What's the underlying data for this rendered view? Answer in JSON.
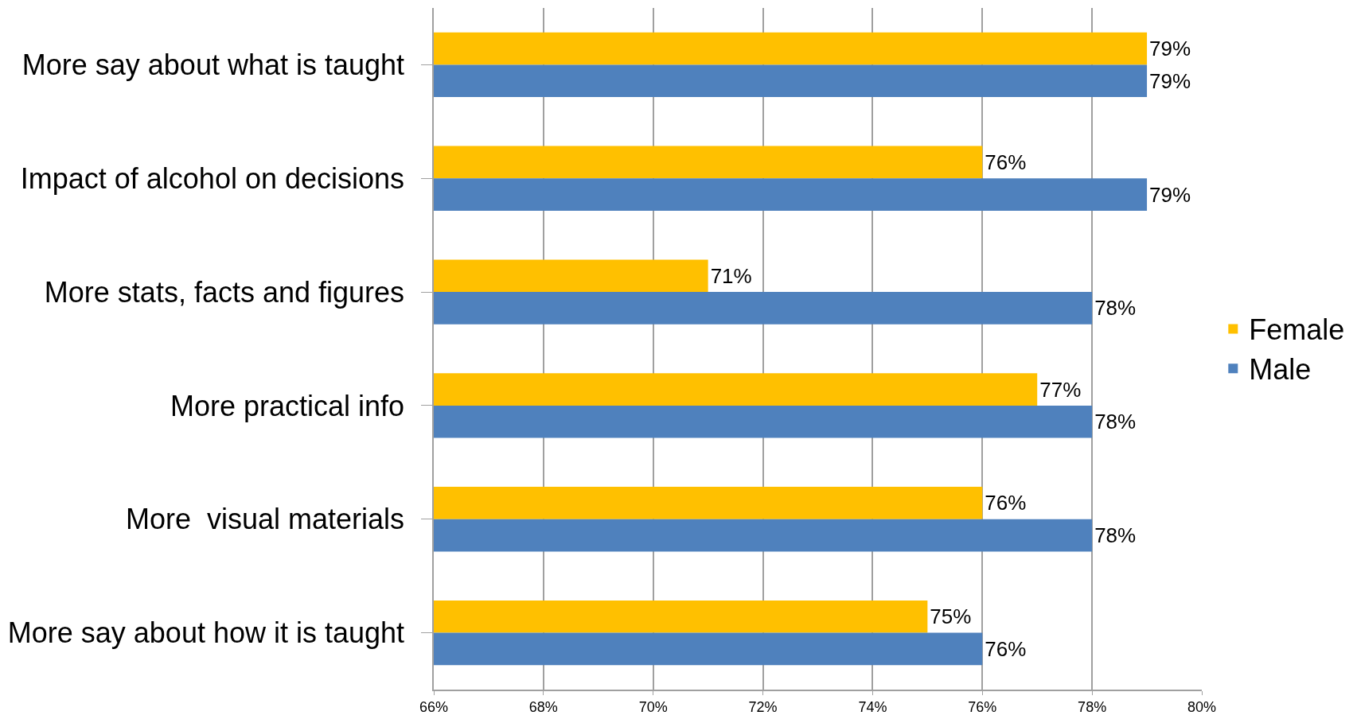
{
  "chart_data": {
    "type": "bar",
    "orientation": "horizontal",
    "categories": [
      "More say about what is taught",
      "Impact of alcohol on decisions",
      "More stats, facts and figures",
      "More practical info",
      "More  visual materials",
      "More say about how it is taught"
    ],
    "series": [
      {
        "name": "Female",
        "color": "#ffc000",
        "values": [
          79,
          76,
          71,
          77,
          76,
          75
        ],
        "value_labels": [
          "79%",
          "76%",
          "71%",
          "77%",
          "76%",
          "75%"
        ]
      },
      {
        "name": "Male",
        "color": "#4f81bd",
        "values": [
          79,
          79,
          78,
          78,
          78,
          76
        ],
        "value_labels": [
          "79%",
          "79%",
          "78%",
          "78%",
          "78%",
          "76%"
        ]
      }
    ],
    "xlim": [
      66,
      80
    ],
    "xticks": [
      {
        "value": 66,
        "label": "66%"
      },
      {
        "value": 68,
        "label": "68%"
      },
      {
        "value": 70,
        "label": "70%"
      },
      {
        "value": 72,
        "label": "72%"
      },
      {
        "value": 74,
        "label": "74%"
      },
      {
        "value": 76,
        "label": "76%"
      },
      {
        "value": 78,
        "label": "78%"
      },
      {
        "value": 80,
        "label": "80%"
      }
    ],
    "grid": "x",
    "legend": "right"
  }
}
